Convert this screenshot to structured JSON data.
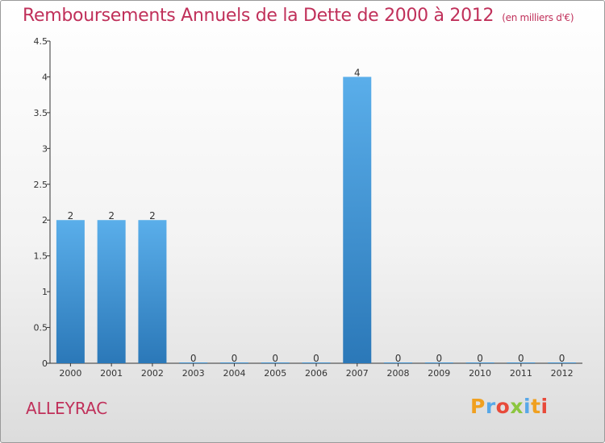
{
  "chart_data": {
    "type": "bar",
    "title": "Remboursements Annuels de la Dette de 2000 à 2012",
    "unit": "(en milliers d'€)",
    "categories": [
      "2000",
      "2001",
      "2002",
      "2003",
      "2004",
      "2005",
      "2006",
      "2007",
      "2008",
      "2009",
      "2010",
      "2011",
      "2012"
    ],
    "values": [
      2,
      2,
      2,
      0,
      0,
      0,
      0,
      4,
      0,
      0,
      0,
      0,
      0
    ],
    "data_labels": [
      "2",
      "2",
      "2",
      "0",
      "0",
      "0",
      "0",
      "4",
      "0",
      "0",
      "0",
      "0",
      "0"
    ],
    "y_ticks": [
      0,
      0.5,
      1,
      1.5,
      2,
      2.5,
      3,
      3.5,
      4,
      4.5
    ],
    "y_tick_labels": [
      "0",
      "0.5",
      "1",
      "1.5",
      "2",
      "2.5",
      "3",
      "3.5",
      "4",
      "4.5"
    ],
    "ylim": [
      0,
      4.5
    ],
    "xlabel": "",
    "ylabel": "",
    "grid": false,
    "legend": "none",
    "bar_color_top": "#5aaeea",
    "bar_color_bottom": "#2b78b8",
    "axis_color": "#333333"
  },
  "commune": "ALLEYRAC",
  "logo": {
    "p": "P",
    "r": "r",
    "o": "o",
    "x": "x",
    "i": "i",
    "t": "t",
    "i2": "i"
  }
}
